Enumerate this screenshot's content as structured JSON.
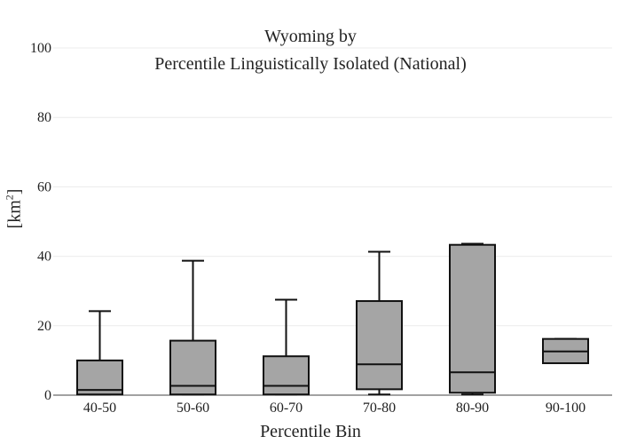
{
  "chart_data": {
    "type": "box",
    "title_lines": [
      "Wyoming  by",
      "Percentile Linguistically Isolated (National)"
    ],
    "xlabel": "Percentile Bin",
    "ylabel": "[km",
    "ylabel_sup": "2",
    "ylabel_suffix": "]",
    "ylim": [
      0,
      100
    ],
    "yticks": [
      0,
      20,
      40,
      60,
      80,
      100
    ],
    "grid": true,
    "box_color": "#a5a5a5",
    "line_color": "#111111",
    "categories": [
      "40-50",
      "50-60",
      "60-70",
      "70-80",
      "80-90",
      "90-100"
    ],
    "boxes": [
      {
        "min": 0.2,
        "q1": 0.2,
        "median": 1.5,
        "q3": 10,
        "max": 24.2
      },
      {
        "min": 0.2,
        "q1": 0.2,
        "median": 2.7,
        "q3": 15.7,
        "max": 38.7
      },
      {
        "min": 0.2,
        "q1": 0.2,
        "median": 2.7,
        "q3": 11.2,
        "max": 27.5
      },
      {
        "min": 0.2,
        "q1": 1.7,
        "median": 8.9,
        "q3": 27.1,
        "max": 41.3
      },
      {
        "min": 0.2,
        "q1": 0.7,
        "median": 6.6,
        "q3": 43.3,
        "max": 43.6
      },
      {
        "min": 9.2,
        "q1": 9.2,
        "median": 12.6,
        "q3": 16.2,
        "max": 16.2
      }
    ]
  }
}
